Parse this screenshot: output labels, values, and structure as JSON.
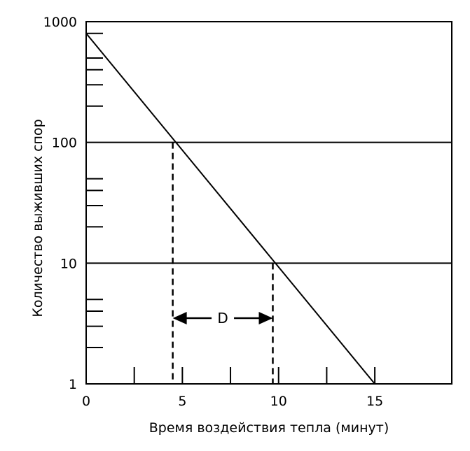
{
  "chart_data": {
    "type": "line",
    "xlabel": "Время воздействия тепла (минут)",
    "ylabel": "Количество выживших спор",
    "y_scale": "log",
    "xlim": [
      0,
      19
    ],
    "ylim": [
      1,
      1000
    ],
    "x_ticks": [
      {
        "value": 0,
        "label": "0"
      },
      {
        "value": 5,
        "label": "5"
      },
      {
        "value": 10,
        "label": "10"
      },
      {
        "value": 15,
        "label": "15"
      }
    ],
    "y_ticks": [
      {
        "value": 1,
        "label": "1"
      },
      {
        "value": 10,
        "label": "10"
      },
      {
        "value": 100,
        "label": "100"
      },
      {
        "value": 1000,
        "label": "1000"
      }
    ],
    "x_minor_ticks": [
      2.5,
      7.5,
      12.5
    ],
    "y_minor_ticks": [
      2,
      3,
      4,
      5,
      20,
      30,
      40,
      50,
      200,
      300,
      400,
      500,
      800
    ],
    "gridlines_y": [
      10,
      100
    ],
    "series": [
      {
        "values": [
          {
            "x": 0,
            "y": 800
          },
          {
            "x": 15,
            "y": 1
          }
        ]
      }
    ],
    "dashed_markers_x": [
      4.5,
      9.7
    ],
    "annotation": {
      "label": "D",
      "from_x": 4.5,
      "to_x": 9.7,
      "at_y": 3.5
    }
  }
}
